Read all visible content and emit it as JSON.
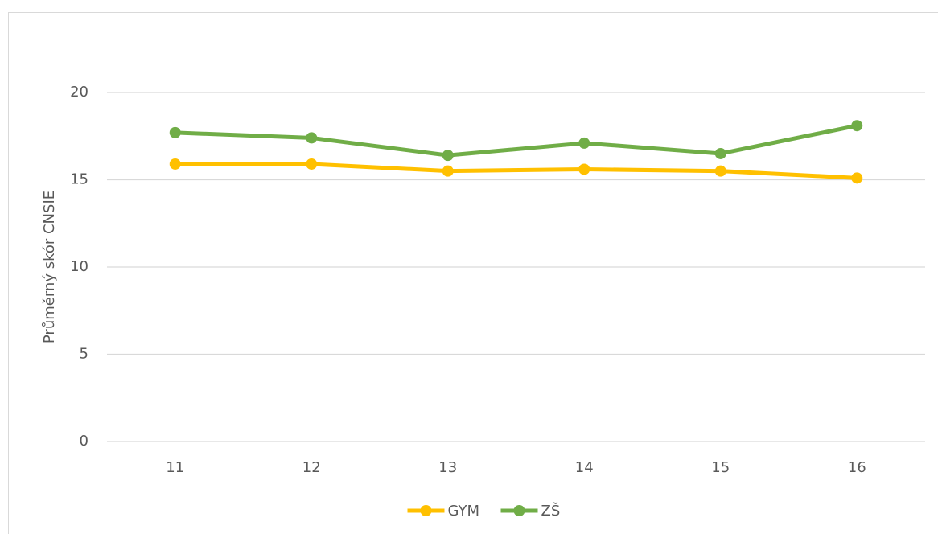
{
  "chart_data": {
    "type": "line",
    "y_label": "Průměrný skór CNSIE",
    "categories": [
      "11",
      "12",
      "13",
      "14",
      "15",
      "16"
    ],
    "series": [
      {
        "name": "GYM",
        "color": "#ffc000",
        "values": [
          15.9,
          15.9,
          15.5,
          15.6,
          15.5,
          15.1
        ]
      },
      {
        "name": "ZŠ",
        "color": "#70ad47",
        "values": [
          17.7,
          17.4,
          16.4,
          17.1,
          16.5,
          18.1
        ]
      }
    ],
    "ylim": [
      0,
      20
    ],
    "yticks": [
      0,
      5,
      10,
      15,
      20
    ],
    "grid": true,
    "legend": "bottom"
  }
}
